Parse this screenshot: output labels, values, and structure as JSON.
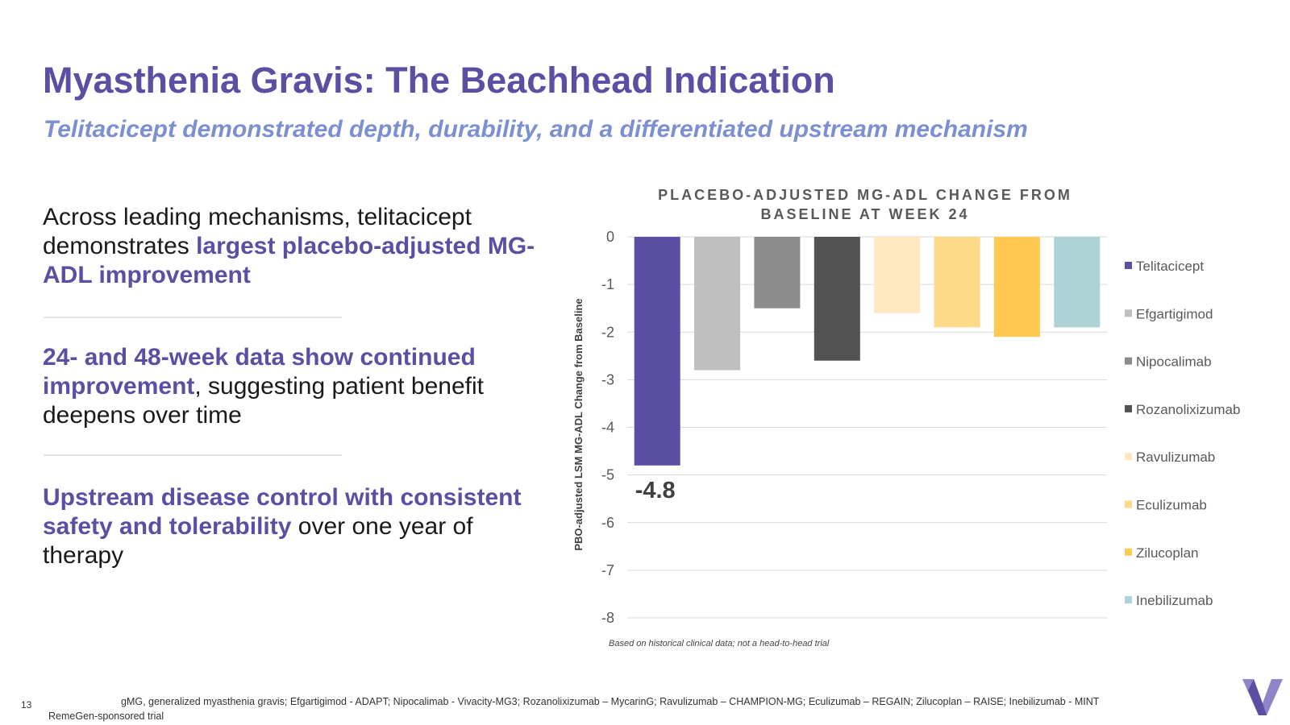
{
  "header": {
    "title": "Myasthenia Gravis: The Beachhead Indication",
    "subtitle": "Telitacicept demonstrated depth, durability, and a differentiated upstream mechanism"
  },
  "bullets": [
    {
      "text_before": "Across leading mechanisms, telitacicept demonstrates ",
      "highlight": "largest placebo-adjusted MG-ADL improvement",
      "text_after": ""
    },
    {
      "text_before": "",
      "highlight": "24- and 48-week data show continued improvement",
      "text_after": ", suggesting patient benefit deepens over time"
    },
    {
      "text_before": "",
      "highlight": "Upstream disease control with consistent safety and tolerability",
      "text_after": " over one year of therapy"
    }
  ],
  "chart_data": {
    "type": "bar",
    "title_lines": [
      "PLACEBO-ADJUSTED MG-ADL CHANGE FROM",
      "BASELINE AT WEEK 24"
    ],
    "ylabel": "PBO-adjusted LSM MG-ADL Change from Baseline",
    "xlabel": "",
    "ylim": [
      -8,
      0
    ],
    "yticks": [
      0,
      -1,
      -2,
      -3,
      -4,
      -5,
      -6,
      -7,
      -8
    ],
    "grid": true,
    "legend_position": "right",
    "categories": [
      "Telitacicept",
      "Efgartigimod",
      "Nipocalimab",
      "Rozanolixizumab",
      "Ravulizumab",
      "Eculizumab",
      "Zilucoplan",
      "Inebilizumab"
    ],
    "values": [
      -4.8,
      -2.8,
      -1.5,
      -2.6,
      -1.6,
      -1.9,
      -2.1,
      -1.9
    ],
    "colors": [
      "#5a4fa2",
      "#bfbfbf",
      "#8c8c8c",
      "#525252",
      "#ffe8bf",
      "#ffd98a",
      "#ffc952",
      "#aed3d6"
    ],
    "data_labels": [
      {
        "category": "Telitacicept",
        "text": "-4.8"
      }
    ],
    "footnote": "Based on historical clinical data; not a head-to-head trial"
  },
  "footer": {
    "page_number": "13",
    "references": "gMG, generalized myasthenia gravis; Efgartigimod - ADAPT; Nipocalimab - Vivacity-MG3; Rozanolixizumab – MycarinG; Ravulizumab – CHAMPION-MG; Eculizumab – REGAIN; Zilucoplan – RAISE; Inebilizumab - MINT",
    "sponsor_note": "RemeGen-sponsored trial"
  },
  "logo": {
    "icon": "v-logo-icon",
    "colors": [
      "#5a4fa2",
      "#8e84c7"
    ]
  }
}
